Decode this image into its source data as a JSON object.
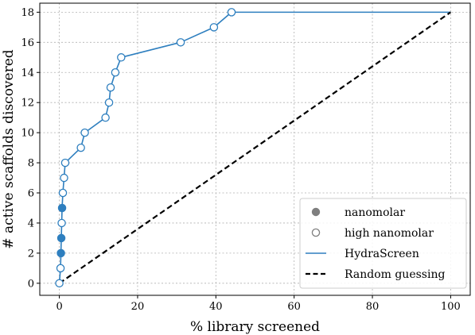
{
  "chart_data": {
    "type": "line",
    "xlabel": "% library screened",
    "ylabel": "# active scaffolds discovered",
    "xlim": [
      -5,
      105
    ],
    "ylim": [
      -0.8,
      18.6
    ],
    "xticks": [
      0,
      20,
      40,
      60,
      80,
      100
    ],
    "yticks": [
      0,
      2,
      4,
      6,
      8,
      10,
      12,
      14,
      16,
      18
    ],
    "xtick_labels": [
      "0",
      "20",
      "40",
      "60",
      "80",
      "100"
    ],
    "ytick_labels": [
      "0",
      "2",
      "4",
      "6",
      "8",
      "10",
      "12",
      "14",
      "16",
      "18"
    ],
    "grid": true,
    "legend_position": "lower-right",
    "colors": {
      "hydra": "#2e7fbf",
      "random": "#000000",
      "marker_filled": "#7f7f7f",
      "grid": "#b0b0b0"
    },
    "series": [
      {
        "name": "HydraScreen",
        "style": "solid",
        "x": [
          0,
          0.3,
          0.4,
          0.5,
          0.6,
          0.7,
          0.9,
          1.2,
          1.5,
          5.5,
          6.5,
          11.8,
          12.7,
          13.1,
          14.3,
          15.8,
          31.0,
          39.5,
          44.0,
          100
        ],
        "y": [
          0,
          1,
          2,
          3,
          4,
          5,
          6,
          7,
          8,
          9,
          10,
          11,
          12,
          13,
          14,
          15,
          16,
          17,
          18,
          18
        ]
      },
      {
        "name": "Random guessing",
        "style": "dashed",
        "x": [
          0,
          100
        ],
        "y": [
          0,
          18
        ]
      }
    ],
    "markers": [
      {
        "x": 0,
        "y": 0,
        "filled": false
      },
      {
        "x": 0.3,
        "y": 1,
        "filled": false
      },
      {
        "x": 0.4,
        "y": 2,
        "filled": true
      },
      {
        "x": 0.5,
        "y": 3,
        "filled": true
      },
      {
        "x": 0.6,
        "y": 4,
        "filled": false
      },
      {
        "x": 0.7,
        "y": 5,
        "filled": true
      },
      {
        "x": 0.9,
        "y": 6,
        "filled": false
      },
      {
        "x": 1.2,
        "y": 7,
        "filled": false
      },
      {
        "x": 1.5,
        "y": 8,
        "filled": false
      },
      {
        "x": 5.5,
        "y": 9,
        "filled": false
      },
      {
        "x": 6.5,
        "y": 10,
        "filled": false
      },
      {
        "x": 11.8,
        "y": 11,
        "filled": false
      },
      {
        "x": 12.7,
        "y": 12,
        "filled": false
      },
      {
        "x": 13.1,
        "y": 13,
        "filled": false
      },
      {
        "x": 14.3,
        "y": 14,
        "filled": false
      },
      {
        "x": 15.8,
        "y": 15,
        "filled": false
      },
      {
        "x": 31.0,
        "y": 16,
        "filled": false
      },
      {
        "x": 39.5,
        "y": 17,
        "filled": false
      },
      {
        "x": 44.0,
        "y": 18,
        "filled": false
      }
    ],
    "legend": [
      {
        "label": "nanomolar",
        "kind": "marker-filled"
      },
      {
        "label": "high nanomolar",
        "kind": "marker-open"
      },
      {
        "label": "HydraScreen",
        "kind": "line-solid"
      },
      {
        "label": "Random guessing",
        "kind": "line-dashed"
      }
    ]
  }
}
